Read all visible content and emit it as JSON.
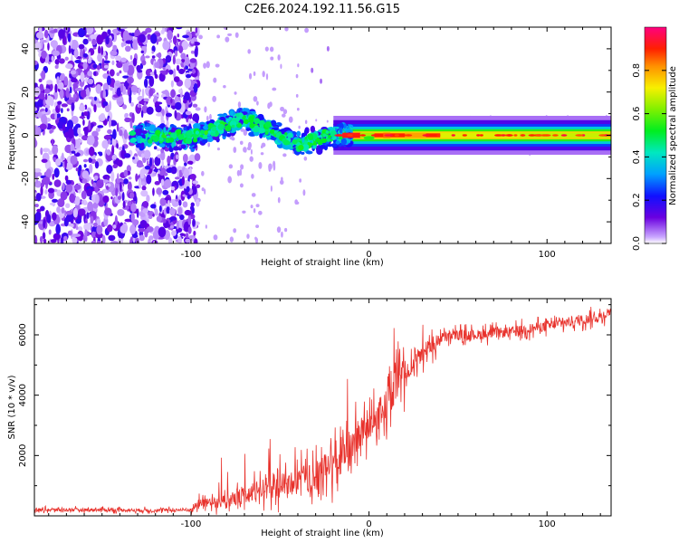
{
  "title": "C2E6.2024.192.11.56.G15",
  "colors": {
    "accent": "#e8322c",
    "axis": "#000000",
    "scatter": "#6a00e0"
  },
  "chart_data": [
    {
      "type": "heatmap",
      "title": "C2E6.2024.192.11.56.G15",
      "xlabel": "Height of straight line (km)",
      "ylabel": "Frequency (Hz)",
      "xlim": [
        -188,
        136
      ],
      "ylim": [
        -50,
        50
      ],
      "xticks": [
        -100,
        0,
        100
      ],
      "xtick_labels": [
        "-100",
        "0",
        "100"
      ],
      "yticks": [
        40,
        20,
        0,
        -20,
        -40
      ],
      "ytick_labels": [
        "40",
        "20",
        "0",
        "-20",
        "-40"
      ],
      "colorbar": {
        "label": "Normalized spectral amplitude",
        "ticks": [
          0.0,
          0.2,
          0.4,
          0.6,
          0.8
        ],
        "tick_labels": [
          "0.0",
          "0.2",
          "0.4",
          "0.6",
          "0.8"
        ],
        "range": [
          0,
          1
        ],
        "colormap": "rainbow: white, purple, blue, cyan, green, yellow, orange, red, magenta"
      },
      "features": {
        "noise_region_x": [
          -188,
          -100
        ],
        "signal_start_x": -133,
        "signal_ridge": [
          {
            "x": -133,
            "freq": 0
          },
          {
            "x": -100,
            "freq": -1
          },
          {
            "x": -70,
            "freq": 8
          },
          {
            "x": -40,
            "freq": -4
          },
          {
            "x": -20,
            "freq": 0
          },
          {
            "x": 0,
            "freq": 0
          },
          {
            "x": 136,
            "freq": 0
          }
        ]
      },
      "grid": false
    },
    {
      "type": "line",
      "xlabel": "Height of straight line (km)",
      "ylabel": "SNR (10 * v/v)",
      "xlim": [
        -188,
        136
      ],
      "ylim": [
        0,
        7200
      ],
      "xticks": [
        -100,
        0,
        100
      ],
      "xtick_labels": [
        "-100",
        "0",
        "100"
      ],
      "yticks": [
        2000,
        4000,
        6000
      ],
      "ytick_labels": [
        "2000",
        "4000",
        "6000"
      ],
      "series": [
        {
          "color": "#e8322c",
          "x": [
            -188,
            -150,
            -120,
            -100,
            -95,
            -80,
            -70,
            -60,
            -50,
            -40,
            -30,
            -20,
            -15,
            -10,
            -5,
            0,
            5,
            10,
            15,
            20,
            30,
            40,
            50,
            60,
            70,
            80,
            90,
            100,
            110,
            120,
            130,
            136
          ],
          "values": [
            200,
            200,
            180,
            200,
            450,
            450,
            650,
            900,
            1000,
            1150,
            1300,
            1700,
            1800,
            2400,
            2700,
            3100,
            3300,
            3700,
            4300,
            4700,
            5400,
            5900,
            6000,
            6000,
            6050,
            6100,
            6200,
            6300,
            6400,
            6500,
            6600,
            6800
          ]
        }
      ],
      "grid": false
    }
  ]
}
